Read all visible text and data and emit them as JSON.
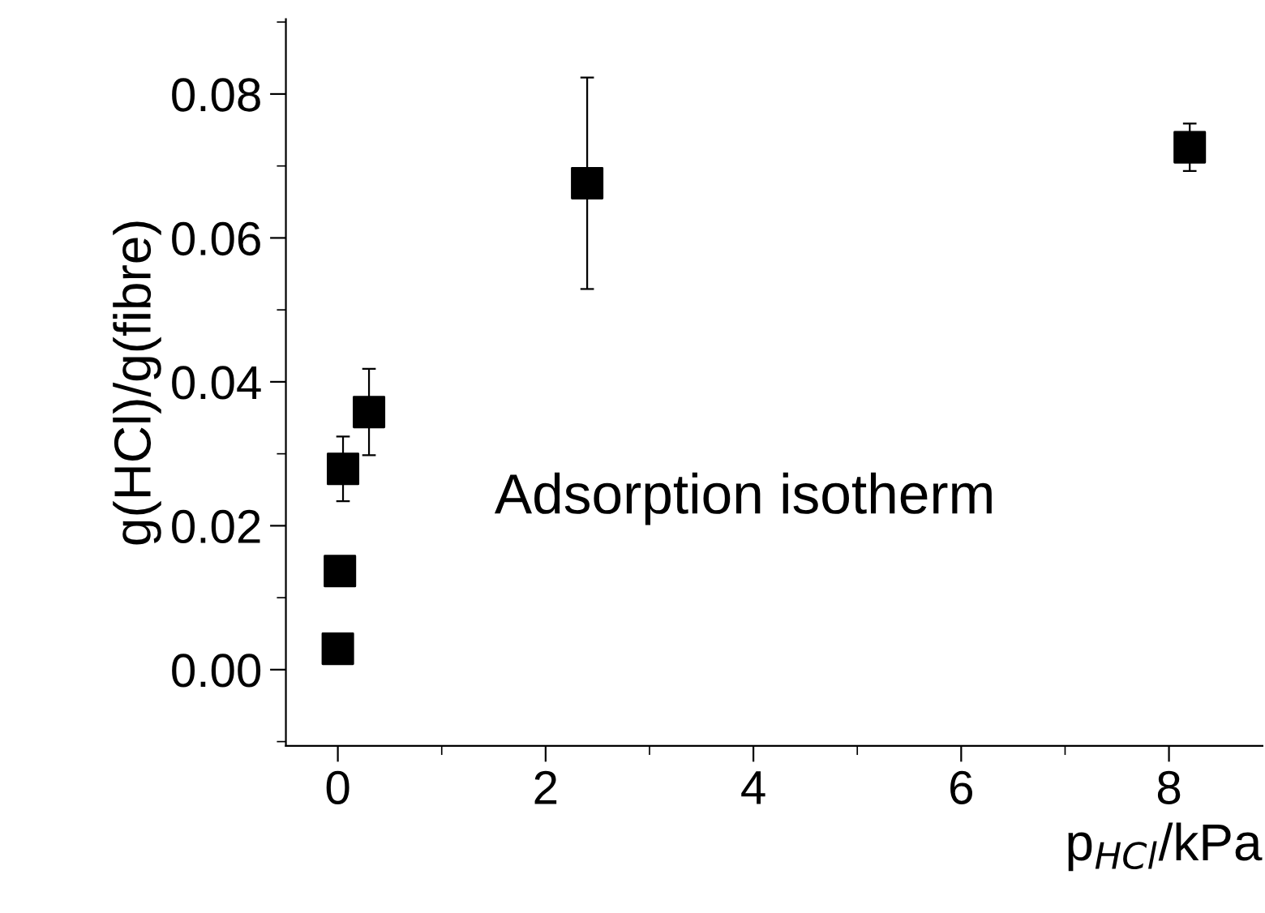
{
  "chart_data": {
    "type": "scatter",
    "xlabel": "p$_{HCl}$/kPa",
    "ylabel": "g(HCl)/g(fibre)",
    "annotations": [
      "Adsorption isotherm"
    ],
    "x": [
      0.0,
      0.02,
      0.05,
      0.3,
      2.4,
      8.2
    ],
    "series": [
      {
        "color": "#000000",
        "values": [
          0.0029,
          0.0137,
          0.0279,
          0.0358,
          0.0676,
          0.0726
        ],
        "errors": [
          null,
          null,
          0.0045,
          0.006,
          0.0147,
          0.0033
        ]
      }
    ],
    "marker": "square",
    "xlim": [
      -0.5,
      8.9
    ],
    "ylim": [
      -0.0106,
      0.0904
    ],
    "xticks": [
      0,
      2,
      4,
      6,
      8
    ],
    "yticks": [
      {
        "value": 0,
        "label": "0.00"
      },
      {
        "value": 0.02,
        "label": "0.02"
      },
      {
        "value": 0.04,
        "label": "0.04"
      },
      {
        "value": 0.06,
        "label": "0.06"
      },
      {
        "value": 0.08,
        "label": "0.08"
      }
    ],
    "grid": false,
    "legend": false
  }
}
